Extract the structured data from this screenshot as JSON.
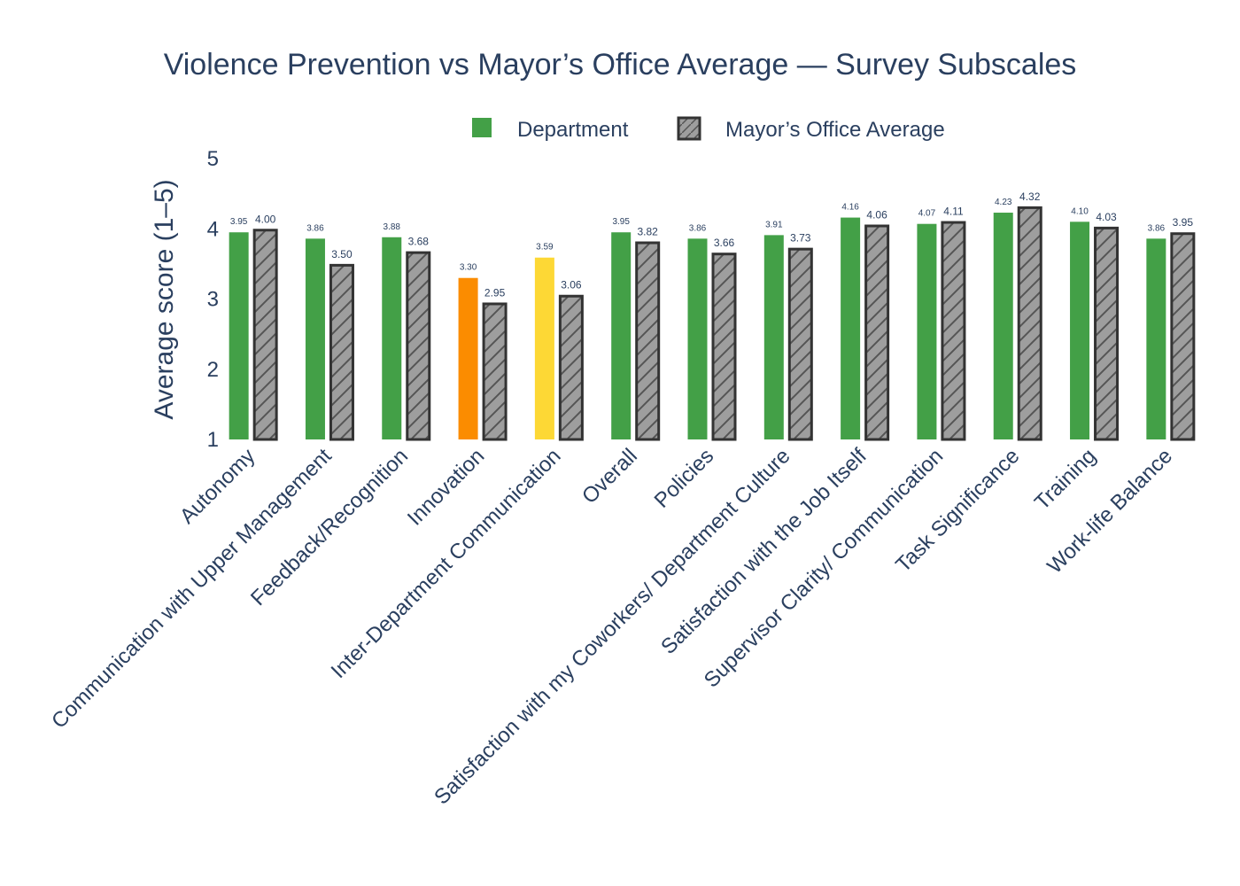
{
  "chart_data": {
    "type": "bar",
    "title": "Violence Prevention vs Mayor’s Office Average — Survey Subscales",
    "xlabel": "",
    "ylabel": "Average score (1–5)",
    "ylim": [
      1,
      5
    ],
    "yticks": [
      "1",
      "2",
      "3",
      "4",
      "5"
    ],
    "legend_position": "top",
    "categories": [
      "Autonomy",
      "Communication with Upper Management",
      "Feedback/Recognition",
      "Innovation",
      "Inter-Department Communication",
      "Overall",
      "Policies",
      "Satisfaction with my Coworkers/ Department Culture",
      "Satisfaction with the Job Itself",
      "Supervisor Clarity/ Communication",
      "Task Significance",
      "Training",
      "Work-life Balance"
    ],
    "series": [
      {
        "name": "Department",
        "values": [
          3.95,
          3.86,
          3.88,
          3.3,
          3.59,
          3.95,
          3.86,
          3.91,
          4.16,
          4.07,
          4.23,
          4.1,
          3.86
        ],
        "labels": [
          "3.95",
          "3.86",
          "3.88",
          "3.30",
          "3.59",
          "3.95",
          "3.86",
          "3.91",
          "4.16",
          "4.07",
          "4.23",
          "4.10",
          "3.86"
        ],
        "colors": [
          "#43a047",
          "#43a047",
          "#43a047",
          "#fb8c00",
          "#fdd835",
          "#43a047",
          "#43a047",
          "#43a047",
          "#43a047",
          "#43a047",
          "#43a047",
          "#43a047",
          "#43a047"
        ]
      },
      {
        "name": "Mayor’s Office Average",
        "values": [
          4.0,
          3.5,
          3.68,
          2.95,
          3.06,
          3.82,
          3.66,
          3.73,
          4.06,
          4.11,
          4.32,
          4.03,
          3.95
        ],
        "labels": [
          "4.00",
          "3.50",
          "3.68",
          "2.95",
          "3.06",
          "3.82",
          "3.66",
          "3.73",
          "4.06",
          "4.11",
          "4.32",
          "4.03",
          "3.95"
        ],
        "color": "#9e9e9e",
        "outline": "#333333"
      }
    ]
  }
}
